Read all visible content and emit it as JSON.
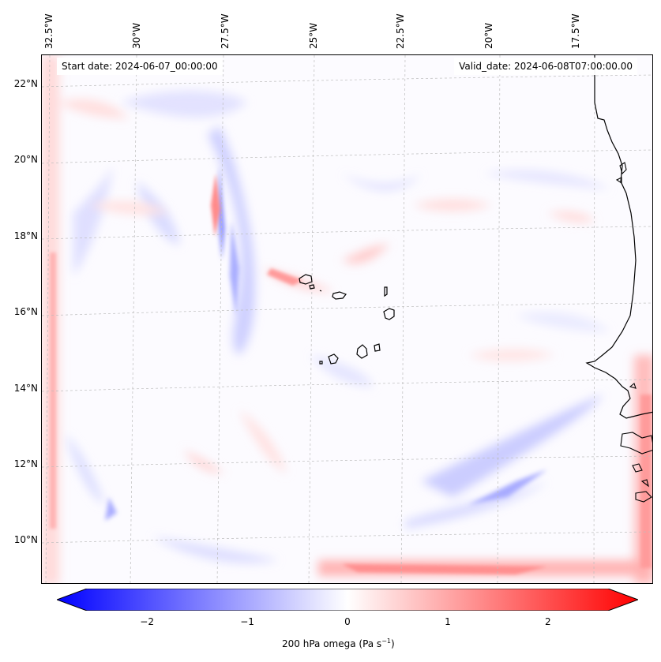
{
  "header": {
    "start_date": "Start date: 2024-06-07_00:00:00",
    "valid_date": "Valid_date: 2024-06-08T07:00:00.00"
  },
  "map": {
    "longitude_labels": [
      "32.5°W",
      "30°W",
      "27.5°W",
      "25°W",
      "22.5°W",
      "20°W",
      "17.5°W"
    ],
    "latitude_labels": [
      "22°N",
      "20°N",
      "18°N",
      "16°N",
      "14°N",
      "12°N",
      "10°N"
    ],
    "gridlines": true,
    "colors": {
      "negative": "#0000ff",
      "positive": "#ff0000",
      "neutral": "#ffffff",
      "coastline": "#000000"
    }
  },
  "colorbar": {
    "label": "200 hPa omega (Pa s",
    "label_exponent": "−1",
    "label_suffix": ")",
    "tick_labels": [
      "−2",
      "−1",
      "0",
      "1",
      "2"
    ],
    "tick_values": [
      -2,
      -1,
      0,
      1,
      2
    ],
    "range": [
      -2.6,
      2.6
    ]
  }
}
